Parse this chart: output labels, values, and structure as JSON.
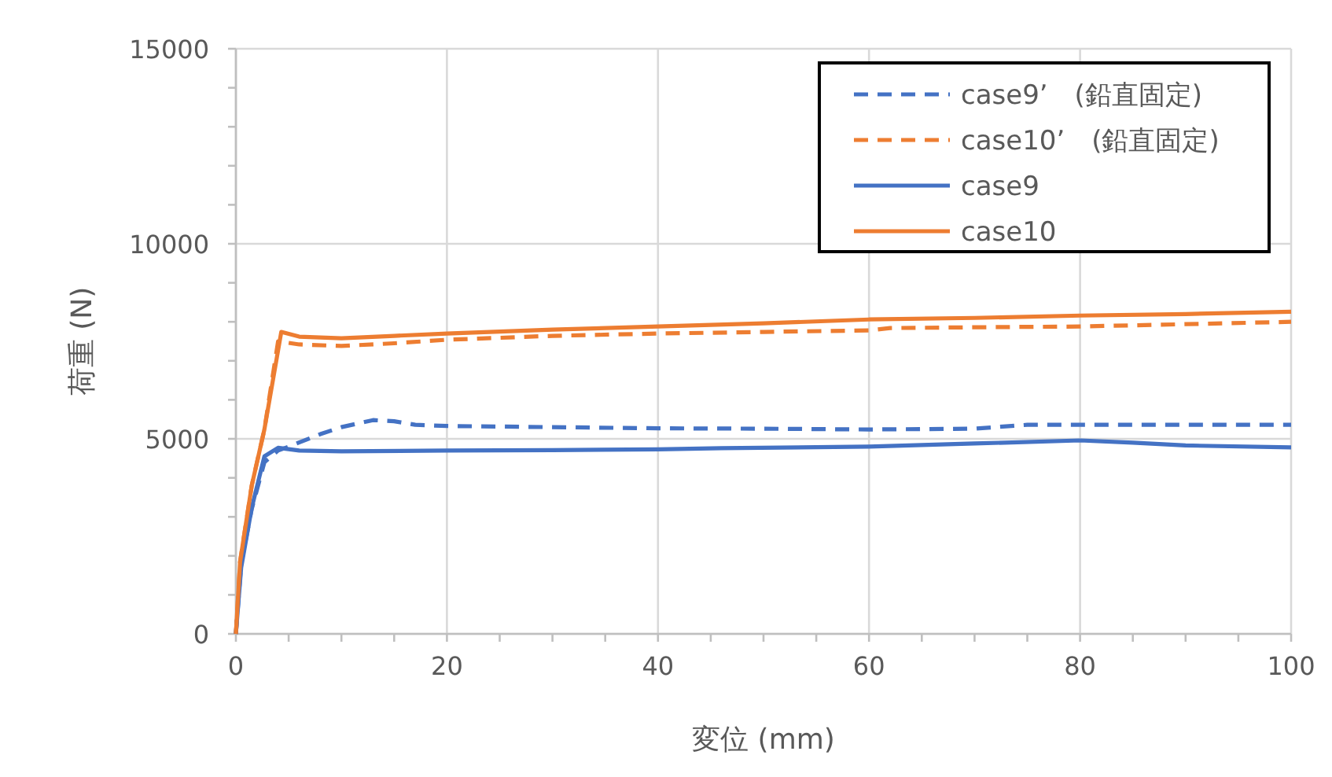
{
  "chart_data": {
    "type": "line",
    "xlabel": "変位 (mm)",
    "ylabel": "荷重 (N)",
    "xlim": [
      0,
      100
    ],
    "ylim": [
      0,
      15000
    ],
    "xticks": [
      0,
      {
        "value": 5,
        "label": null
      },
      {
        "value": 10,
        "label": null
      },
      {
        "value": 15,
        "label": null
      },
      20,
      {
        "value": 25,
        "label": null
      },
      {
        "value": 30,
        "label": null
      },
      {
        "value": 35,
        "label": null
      },
      40,
      {
        "value": 45,
        "label": null
      },
      {
        "value": 50,
        "label": null
      },
      {
        "value": 55,
        "label": null
      },
      60,
      {
        "value": 65,
        "label": null
      },
      {
        "value": 70,
        "label": null
      },
      {
        "value": 75,
        "label": null
      },
      80,
      {
        "value": 85,
        "label": null
      },
      {
        "value": 90,
        "label": null
      },
      {
        "value": 95,
        "label": null
      },
      100
    ],
    "yticks": [
      0,
      {
        "value": 1000,
        "label": null
      },
      {
        "value": 2000,
        "label": null
      },
      {
        "value": 3000,
        "label": null
      },
      {
        "value": 4000,
        "label": null
      },
      5000,
      {
        "value": 6000,
        "label": null
      },
      {
        "value": 7000,
        "label": null
      },
      {
        "value": 8000,
        "label": null
      },
      {
        "value": 9000,
        "label": null
      },
      10000,
      {
        "value": 11000,
        "label": null
      },
      {
        "value": 12000,
        "label": null
      },
      {
        "value": 13000,
        "label": null
      },
      {
        "value": 14000,
        "label": null
      },
      15000
    ],
    "grid": true,
    "legend": "top right",
    "marker": "none",
    "series": [
      {
        "name": "case9’　(鉛直固定)",
        "color": "#4472c4",
        "line_style": "dashed",
        "x": [
          0,
          0.5,
          1.5,
          2.7,
          4,
          5,
          8,
          10,
          13,
          15,
          17,
          20,
          30,
          40,
          50,
          60,
          70,
          75,
          80,
          90,
          100
        ],
        "values": [
          0,
          1800,
          3200,
          4400,
          4700,
          4800,
          5120,
          5300,
          5480,
          5450,
          5360,
          5330,
          5300,
          5270,
          5260,
          5240,
          5260,
          5360,
          5360,
          5360,
          5360
        ]
      },
      {
        "name": "case10’　(鉛直固定)",
        "color": "#ed7d31",
        "line_style": "dashed",
        "x": [
          0,
          0.4,
          1.5,
          2.7,
          4,
          6,
          10,
          15,
          20,
          30,
          40,
          50,
          60,
          62,
          70,
          80,
          90,
          100
        ],
        "values": [
          0,
          1850,
          3800,
          5240,
          7500,
          7420,
          7380,
          7450,
          7540,
          7640,
          7700,
          7740,
          7780,
          7840,
          7860,
          7880,
          7940,
          8000
        ]
      },
      {
        "name": "case9",
        "color": "#4472c4",
        "line_style": "solid",
        "x": [
          0,
          0.5,
          1.5,
          2.7,
          4,
          6,
          10,
          20,
          30,
          40,
          46,
          60,
          70,
          80,
          85,
          90,
          100
        ],
        "values": [
          0,
          1700,
          3230,
          4550,
          4770,
          4700,
          4680,
          4700,
          4710,
          4730,
          4760,
          4800,
          4880,
          4960,
          4900,
          4830,
          4780
        ]
      },
      {
        "name": "case10",
        "color": "#ed7d31",
        "line_style": "solid",
        "x": [
          0,
          0.4,
          1.5,
          2.7,
          4.3,
          6,
          10,
          15,
          20,
          30,
          40,
          50,
          60,
          70,
          80,
          90,
          100
        ],
        "values": [
          0,
          1850,
          3800,
          5240,
          7740,
          7620,
          7580,
          7640,
          7700,
          7800,
          7880,
          7960,
          8060,
          8100,
          8160,
          8200,
          8260
        ]
      }
    ]
  }
}
